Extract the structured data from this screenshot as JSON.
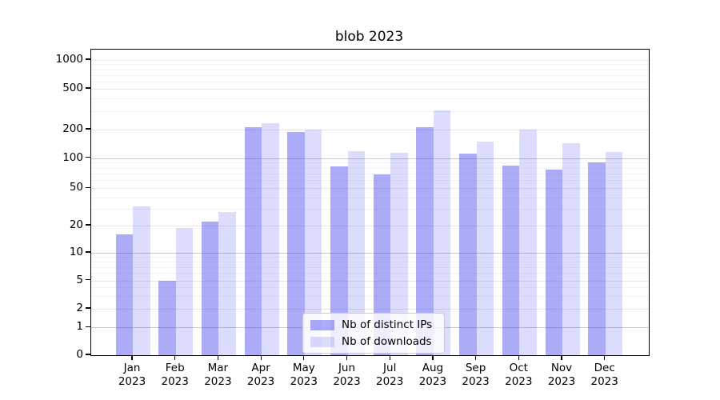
{
  "figure": {
    "title": "blob 2023"
  },
  "legend": {
    "items": [
      {
        "label": "Nb of distinct IPs"
      },
      {
        "label": "Nb of downloads"
      }
    ]
  },
  "chart_data": {
    "type": "bar",
    "title": "blob 2023",
    "categories": [
      "Jan",
      "Feb",
      "Mar",
      "Apr",
      "May",
      "Jun",
      "Jul",
      "Aug",
      "Sep",
      "Oct",
      "Nov",
      "Dec"
    ],
    "year": "2023",
    "series": [
      {
        "name": "Nb of distinct IPs",
        "color": "rgba(68,68,238,0.45)",
        "values": [
          16,
          5,
          22,
          210,
          190,
          83,
          69,
          210,
          112,
          84,
          77,
          90
        ]
      },
      {
        "name": "Nb of downloads",
        "color": "rgba(68,68,238,0.19)",
        "values": [
          32,
          19,
          28,
          232,
          200,
          118,
          114,
          308,
          150,
          199,
          145,
          116
        ]
      }
    ],
    "y_axis": {
      "scale": "symlog",
      "ticks": [
        0,
        1,
        2,
        5,
        10,
        20,
        50,
        100,
        200,
        500,
        1000
      ],
      "emphasized_gridlines": [
        1,
        10,
        100
      ],
      "minor_gridlines": [
        3,
        4,
        6,
        7,
        8,
        9,
        30,
        40,
        60,
        70,
        80,
        90,
        300,
        400,
        600,
        700,
        800,
        900
      ],
      "range": [
        0,
        1100
      ]
    },
    "x_axis": {
      "label_line2": "2023"
    },
    "grid": true,
    "legend_position": "lower center",
    "colors": {
      "distinct_ips_rendered": "#aaaaf0",
      "downloads_rendered": "#dcdcfa",
      "grid_major": "#c8c8c8",
      "grid_light": "#e6e6e6"
    }
  }
}
